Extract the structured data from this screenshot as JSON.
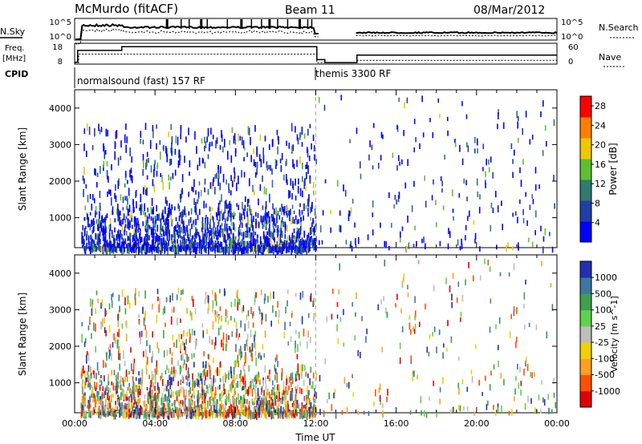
{
  "header": {
    "station": "McMurdo (fitACF)",
    "beam": "Beam 11",
    "date": "08/Mar/2012"
  },
  "summary_panels": {
    "nsky_label": "N.Sky",
    "nsky_ticks": [
      "10^5",
      "10^0"
    ],
    "nsearch_label": "N.Search",
    "nsearch_ticks": [
      "10^5",
      "10^0"
    ],
    "freq_label": "Freq.",
    "freq_unit": "[MHz]",
    "freq_ticks": [
      "18",
      "8"
    ],
    "nave_label": "Nave",
    "nave_ticks": [
      "60",
      "0"
    ],
    "cpid_label": "CPID",
    "cpid_segments": [
      {
        "label": "normalsound (fast) 157 RF",
        "start_hour": 0,
        "end_hour": 12
      },
      {
        "label": "themis 3300 RF",
        "start_hour": 12,
        "end_hour": 24
      }
    ],
    "freq_steps_mhz": [
      [
        0,
        8.6
      ],
      [
        0.15,
        15
      ],
      [
        2.3,
        15
      ],
      [
        2.35,
        17
      ],
      [
        12,
        17
      ],
      [
        12.05,
        10
      ],
      [
        12.4,
        10
      ],
      [
        12.45,
        8.4
      ],
      [
        14,
        8.4
      ],
      [
        14.05,
        12.5
      ],
      [
        24,
        12.5
      ]
    ],
    "nave_steps": [
      [
        0,
        2
      ],
      [
        0.2,
        30
      ],
      [
        12,
        30
      ],
      [
        12.05,
        2
      ],
      [
        14,
        2
      ],
      [
        14.05,
        10
      ],
      [
        24,
        10
      ]
    ]
  },
  "chart_data": [
    {
      "type": "scatter",
      "title": "",
      "xlabel": "",
      "ylabel": "Slant Range [km]",
      "xlim": [
        0,
        24
      ],
      "ylim": [
        180,
        4500
      ],
      "x_unit": "hours UT",
      "yticks": [
        1000,
        2000,
        3000,
        4000
      ],
      "colorbar": {
        "label": "Power [dB]",
        "ticks": [
          "4",
          "8",
          "12",
          "16",
          "20",
          "24",
          "28"
        ],
        "range": [
          0,
          30
        ],
        "colors": [
          "#0000ff",
          "#1f3fa8",
          "#307a6e",
          "#5fbf30",
          "#f0c800",
          "#ff7f00",
          "#ff0000"
        ]
      },
      "segments": [
        {
          "x_range": [
            0.3,
            12
          ],
          "y_range": [
            200,
            1400
          ],
          "density": "high",
          "dominant_values": "4-12 dB"
        },
        {
          "x_range": [
            0.3,
            12
          ],
          "y_range": [
            1400,
            3600
          ],
          "density": "sparse",
          "dominant_values": "4-12 dB"
        },
        {
          "x_range": [
            12,
            24
          ],
          "y_range": [
            200,
            4400
          ],
          "density": "very sparse",
          "dominant_values": "4-8 dB"
        }
      ],
      "event_marker_hour": 12
    },
    {
      "type": "scatter",
      "title": "",
      "xlabel": "Time UT",
      "ylabel": "Slant Range [km]",
      "xlim": [
        0,
        24
      ],
      "ylim": [
        180,
        4500
      ],
      "x_unit": "hours UT",
      "xticks": [
        "00:00",
        "04:00",
        "08:00",
        "12:00",
        "16:00",
        "20:00",
        "00:00"
      ],
      "yticks": [
        1000,
        2000,
        3000,
        4000
      ],
      "colorbar": {
        "label": "Velocity [m s^-1]",
        "ticks": [
          "1000",
          "500",
          "100",
          "25",
          "-25",
          "-100",
          "-500",
          "-1000"
        ],
        "range": [
          -1200,
          1200
        ],
        "colors": [
          "#2030b0",
          "#3c78a0",
          "#3f9f50",
          "#5ed24a",
          "#bdbdbd",
          "#f0d000",
          "#ffa020",
          "#ff5000",
          "#e00000"
        ]
      },
      "segments": [
        {
          "x_range": [
            0.3,
            12
          ],
          "y_range": [
            200,
            1400
          ],
          "density": "high",
          "dominant_values": "mixed -1000 to 1000"
        },
        {
          "x_range": [
            0.3,
            12
          ],
          "y_range": [
            1400,
            3600
          ],
          "density": "sparse",
          "dominant_values": "mixed"
        },
        {
          "x_range": [
            12,
            24
          ],
          "y_range": [
            200,
            4400
          ],
          "density": "very sparse",
          "dominant_values": "mixed"
        }
      ],
      "event_marker_hour": 12
    }
  ]
}
